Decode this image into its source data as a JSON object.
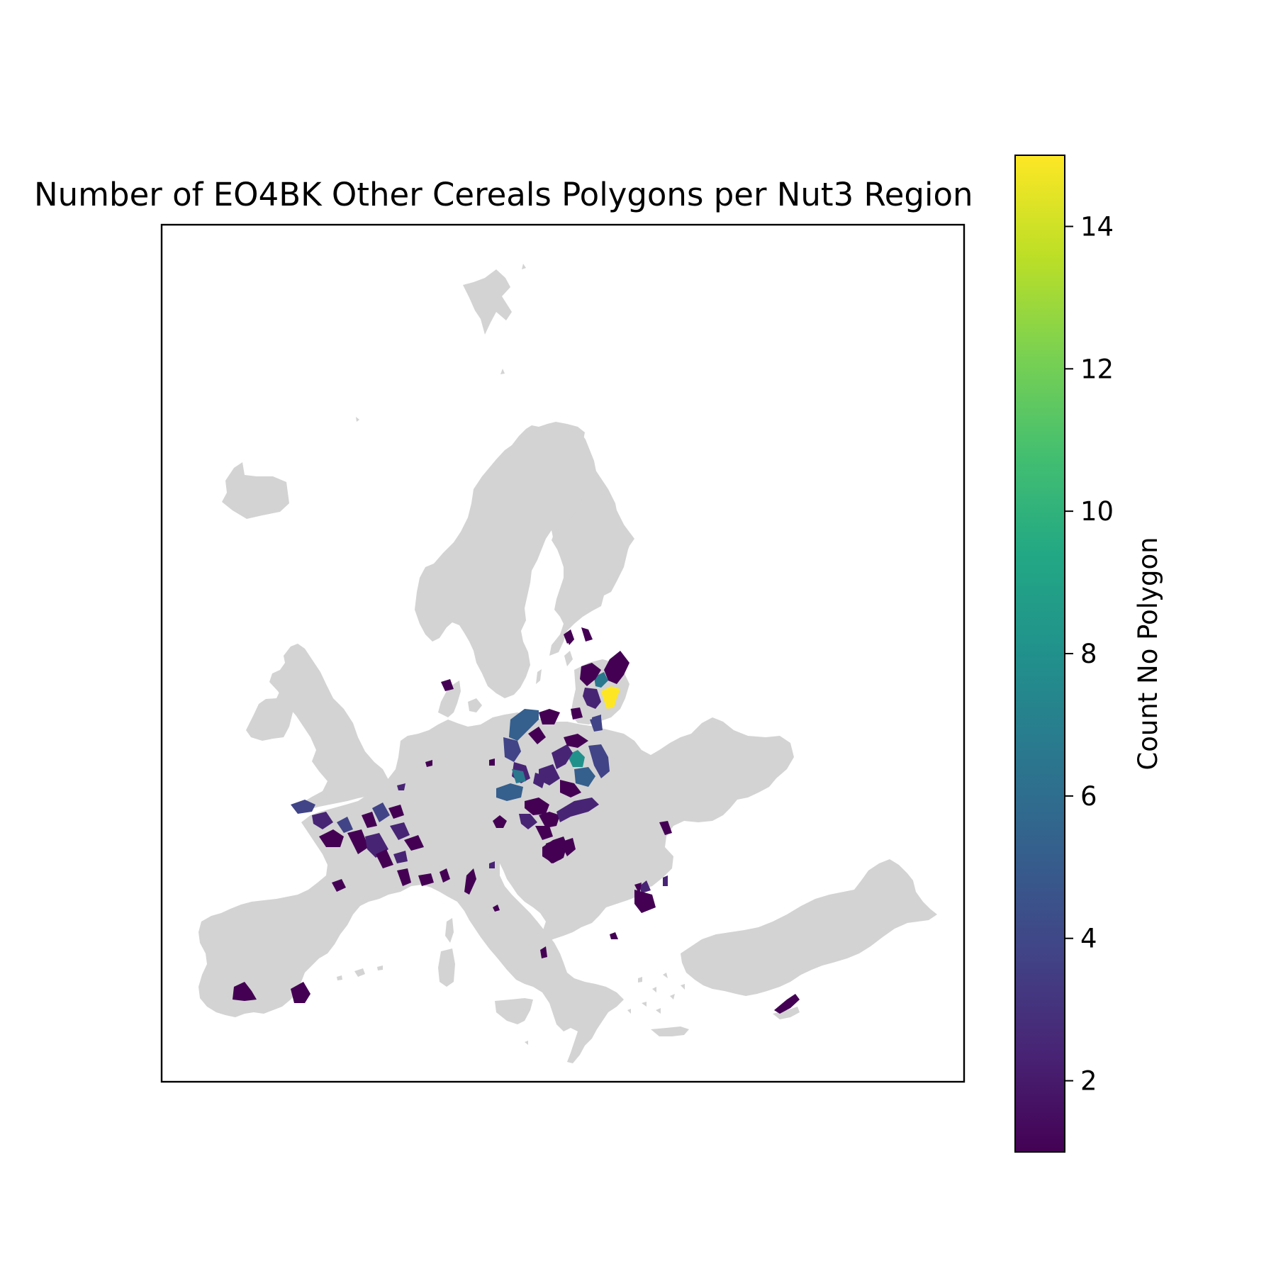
{
  "chart_data": {
    "type": "choropleth",
    "title": "Number of EO4BK Other Cereals Polygons per Nut3 Region",
    "basemap_color": "#d3d3d3",
    "colormap": "viridis",
    "colorbar": {
      "label": "Count No Polygon",
      "range": [
        1,
        15
      ],
      "ticks": [
        "2",
        "4",
        "6",
        "8",
        "10",
        "12",
        "14"
      ],
      "tick_values": [
        2,
        4,
        6,
        8,
        10,
        12,
        14
      ],
      "position": "right"
    },
    "regions": [
      {
        "country": "LT",
        "value": 15
      },
      {
        "country": "LT",
        "value": 6
      },
      {
        "country": "LT",
        "value": 1
      },
      {
        "country": "LT",
        "value": 1
      },
      {
        "country": "LT",
        "value": 2
      },
      {
        "country": "LV",
        "value": 1
      },
      {
        "country": "PL",
        "value": 10
      },
      {
        "country": "PL",
        "value": 5
      },
      {
        "country": "PL",
        "value": 4
      },
      {
        "country": "PL",
        "value": 3
      },
      {
        "country": "PL",
        "value": 2
      },
      {
        "country": "PL",
        "value": 1
      },
      {
        "country": "PL",
        "value": 4
      },
      {
        "country": "DE",
        "value": 8
      },
      {
        "country": "DE",
        "value": 6
      },
      {
        "country": "DE",
        "value": 5
      },
      {
        "country": "DE",
        "value": 4
      },
      {
        "country": "DE",
        "value": 3
      },
      {
        "country": "DE",
        "value": 2
      },
      {
        "country": "DE",
        "value": 1
      },
      {
        "country": "CZ",
        "value": 2
      },
      {
        "country": "CZ",
        "value": 1
      },
      {
        "country": "AT",
        "value": 1
      },
      {
        "country": "AT",
        "value": 2
      },
      {
        "country": "HU",
        "value": 1
      },
      {
        "country": "FR",
        "value": 4
      },
      {
        "country": "FR",
        "value": 3
      },
      {
        "country": "FR",
        "value": 2
      },
      {
        "country": "FR",
        "value": 1
      },
      {
        "country": "FR",
        "value": 4
      },
      {
        "country": "FR",
        "value": 1
      },
      {
        "country": "ES",
        "value": 1
      },
      {
        "country": "ES",
        "value": 1
      },
      {
        "country": "RO",
        "value": 1
      },
      {
        "country": "RO",
        "value": 2
      },
      {
        "country": "BG",
        "value": 1
      },
      {
        "country": "IT",
        "value": 1
      },
      {
        "country": "IT",
        "value": 2
      },
      {
        "country": "CY",
        "value": 1
      },
      {
        "country": "DK",
        "value": 1
      },
      {
        "country": "SE",
        "value": 1
      }
    ]
  }
}
